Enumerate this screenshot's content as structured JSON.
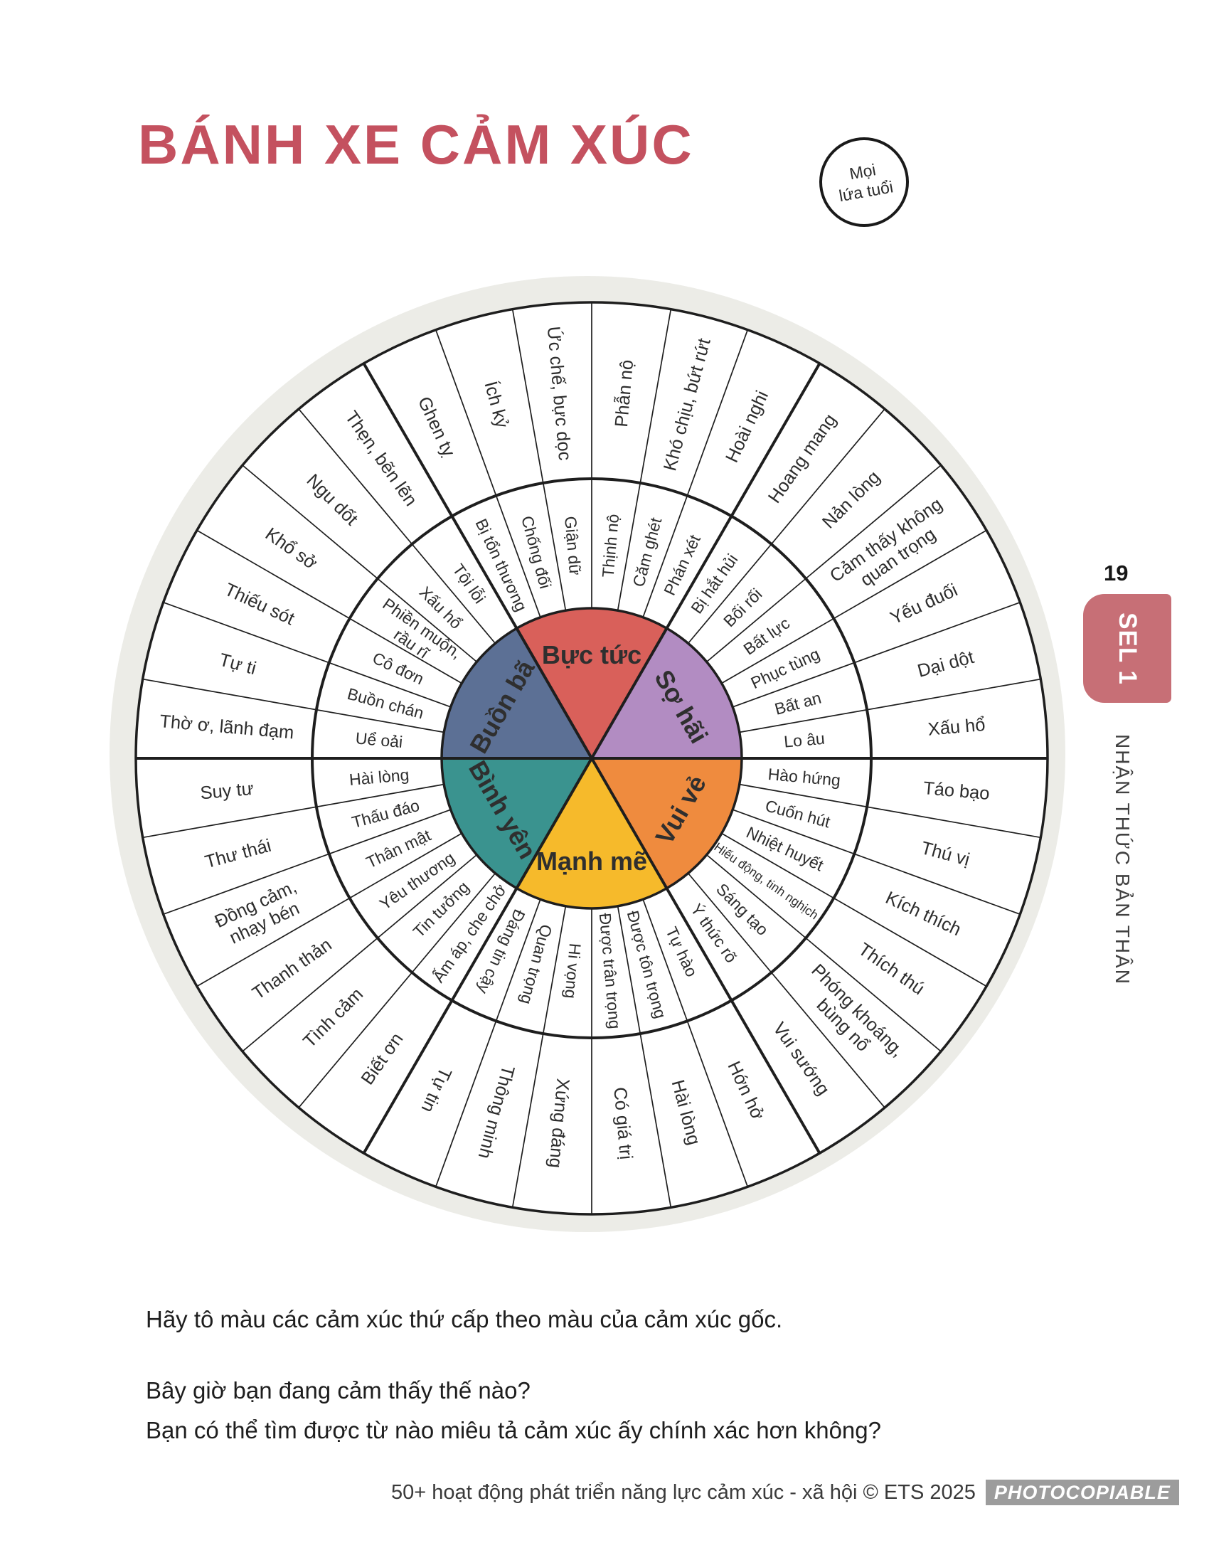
{
  "page": {
    "title": "BÁNH XE CẢM XÚC",
    "title_color": "#C4515F",
    "badge": {
      "line1": "Mọi",
      "line2": "lứa tuổi"
    },
    "page_number": "19",
    "tab_label": "SEL 1",
    "tab_color": "#C76F76",
    "sidebar_text": "NHẬN THỨC BẢN THÂN",
    "instructions": [
      "Hãy tô màu các cảm xúc thứ cấp theo màu của cảm xúc gốc.",
      "Bây giờ bạn đang cảm thấy thế nào?",
      "Bạn có thể tìm được từ nào miêu tả cảm xúc ấy chính xác hơn không?"
    ],
    "footer": {
      "text": "50+ hoạt động phát triển năng lực cảm xúc - xã hội © ETS 2025",
      "badge": "PHOTOCOPIABLE"
    }
  },
  "wheel": {
    "stroke_color": "#1E1E1E",
    "label_color": "#2D2D2D",
    "backdrop_color": "#ECECE7",
    "small_font_labels": [
      "Hiếu động, tinh nghịch"
    ],
    "sections": [
      {
        "label": "Bực tức",
        "color": "#D9605A",
        "middle": [
          [
            "Bị tổn thương"
          ],
          [
            "Chống đối"
          ],
          [
            "Giận dữ"
          ],
          [
            "Thịnh nộ"
          ],
          [
            "Căm ghét"
          ],
          [
            "Phán xét"
          ]
        ],
        "outer": [
          [
            "Ghen tỵ"
          ],
          [
            "Ích kỷ"
          ],
          [
            "Ức chế, bực dọc"
          ],
          [
            "Phẫn nộ"
          ],
          [
            "Khó chịu, bứt rứt"
          ],
          [
            "Hoài nghi"
          ]
        ]
      },
      {
        "label": "Sợ hãi",
        "color": "#B28CC2",
        "middle": [
          [
            "Bị hắt hủi"
          ],
          [
            "Bối rối"
          ],
          [
            "Bất lực"
          ],
          [
            "Phục tùng"
          ],
          [
            "Bất an"
          ],
          [
            "Lo âu"
          ]
        ],
        "outer": [
          [
            "Hoang mang"
          ],
          [
            "Nản lòng"
          ],
          [
            "Cảm thấy không",
            "quan trọng"
          ],
          [
            "Yếu đuối"
          ],
          [
            "Dại dột"
          ],
          [
            "Xấu hổ"
          ]
        ]
      },
      {
        "label": "Vui vẻ",
        "color": "#EF8B3E",
        "middle": [
          [
            "Hào hứng"
          ],
          [
            "Cuốn hút"
          ],
          [
            "Nhiệt huyết"
          ],
          [
            "Hiếu động, tinh nghịch"
          ],
          [
            "Sáng tạo"
          ],
          [
            "Ý thức rõ"
          ]
        ],
        "outer": [
          [
            "Táo bạo"
          ],
          [
            "Thú vị"
          ],
          [
            "Kích thích"
          ],
          [
            "Thích thú"
          ],
          [
            "Phóng khoáng,",
            "bùng nổ"
          ],
          [
            "Vui sướng"
          ]
        ]
      },
      {
        "label": "Mạnh mẽ",
        "color": "#F6BA2B",
        "middle": [
          [
            "Tự hào"
          ],
          [
            "Được tôn trọng"
          ],
          [
            "Được trân trọng"
          ],
          [
            "Hi vọng"
          ],
          [
            "Quan trọng"
          ],
          [
            "Đáng tin cậy"
          ]
        ],
        "outer": [
          [
            "Hớn hở"
          ],
          [
            "Hài lòng"
          ],
          [
            "Có giá trị"
          ],
          [
            "Xứng đáng"
          ],
          [
            "Thông minh"
          ],
          [
            "Tự tin"
          ]
        ]
      },
      {
        "label": "Bình yên",
        "color": "#3A938F",
        "middle": [
          [
            "Ấm áp, che chở"
          ],
          [
            "Tin tưởng"
          ],
          [
            "Yêu thương"
          ],
          [
            "Thân mật"
          ],
          [
            "Thấu đáo"
          ],
          [
            "Hài lòng"
          ]
        ],
        "outer": [
          [
            "Biết ơn"
          ],
          [
            "Tình cảm"
          ],
          [
            "Thanh thản"
          ],
          [
            "Đồng cảm,",
            "nhạy bén"
          ],
          [
            "Thư thái"
          ],
          [
            "Suy tư"
          ]
        ]
      },
      {
        "label": "Buồn bã",
        "color": "#5C7095",
        "middle": [
          [
            "Uể oải"
          ],
          [
            "Buồn chán"
          ],
          [
            "Cô đơn"
          ],
          [
            "Phiền muộn,",
            "rầu rĩ"
          ],
          [
            "Xấu hổ"
          ],
          [
            "Tội lỗi"
          ]
        ],
        "outer": [
          [
            "Thờ ơ, lãnh đạm"
          ],
          [
            "Tự ti"
          ],
          [
            "Thiếu sót"
          ],
          [
            "Khổ sở"
          ],
          [
            "Ngu dốt"
          ],
          [
            "Thẹn, bẽn lẽn"
          ]
        ]
      }
    ]
  }
}
